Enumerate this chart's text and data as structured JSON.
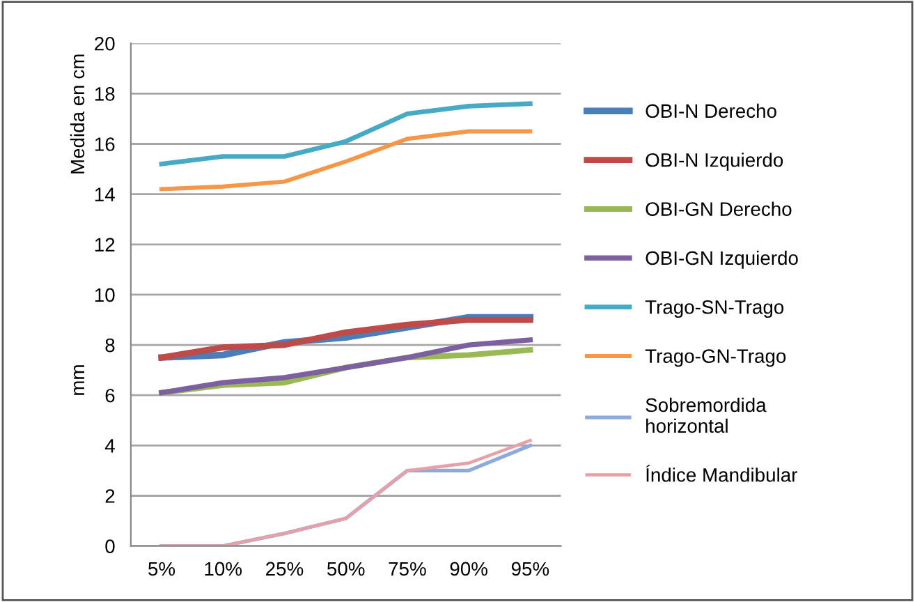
{
  "chart_data": {
    "type": "line",
    "ylabel": "Medida en cm",
    "annotations": [
      "mm"
    ],
    "categories": [
      "5%",
      "10%",
      "25%",
      "50%",
      "75%",
      "90%",
      "95%"
    ],
    "ylim": [
      0,
      20
    ],
    "yticks": [
      0,
      2,
      4,
      6,
      8,
      10,
      12,
      14,
      16,
      18,
      20
    ],
    "grid": "y",
    "legend": "right",
    "series": [
      {
        "name": "OBI-N Derecho",
        "color": "#4a7ebb",
        "values": [
          7.5,
          7.6,
          8.1,
          8.3,
          8.7,
          9.1,
          9.1
        ]
      },
      {
        "name": "OBI-N Izquierdo",
        "color": "#be4b48",
        "values": [
          7.5,
          7.9,
          8.0,
          8.5,
          8.8,
          9.0,
          9.0
        ]
      },
      {
        "name": "OBI-GN Derecho",
        "color": "#98b954",
        "values": [
          6.1,
          6.4,
          6.5,
          7.1,
          7.5,
          7.6,
          7.8
        ]
      },
      {
        "name": "OBI-GN Izquierdo",
        "color": "#7d60a0",
        "values": [
          6.1,
          6.5,
          6.7,
          7.1,
          7.5,
          8.0,
          8.2
        ]
      },
      {
        "name": "Trago-SN-Trago",
        "color": "#46aac5",
        "values": [
          15.2,
          15.5,
          15.5,
          16.1,
          17.2,
          17.5,
          17.6
        ]
      },
      {
        "name": "Trago-GN-Trago",
        "color": "#f79646",
        "values": [
          14.2,
          14.3,
          14.5,
          15.3,
          16.2,
          16.5,
          16.5
        ]
      },
      {
        "name": "Sobremordida\nhorizontal",
        "color": "#8ea9db",
        "values": [
          0,
          0,
          0.5,
          1.1,
          3.0,
          3.0,
          4.0
        ]
      },
      {
        "name": "Índice Mandibular",
        "color": "#e6a0a8",
        "values": [
          0,
          0,
          0.5,
          1.1,
          3.0,
          3.3,
          4.2
        ]
      }
    ]
  }
}
